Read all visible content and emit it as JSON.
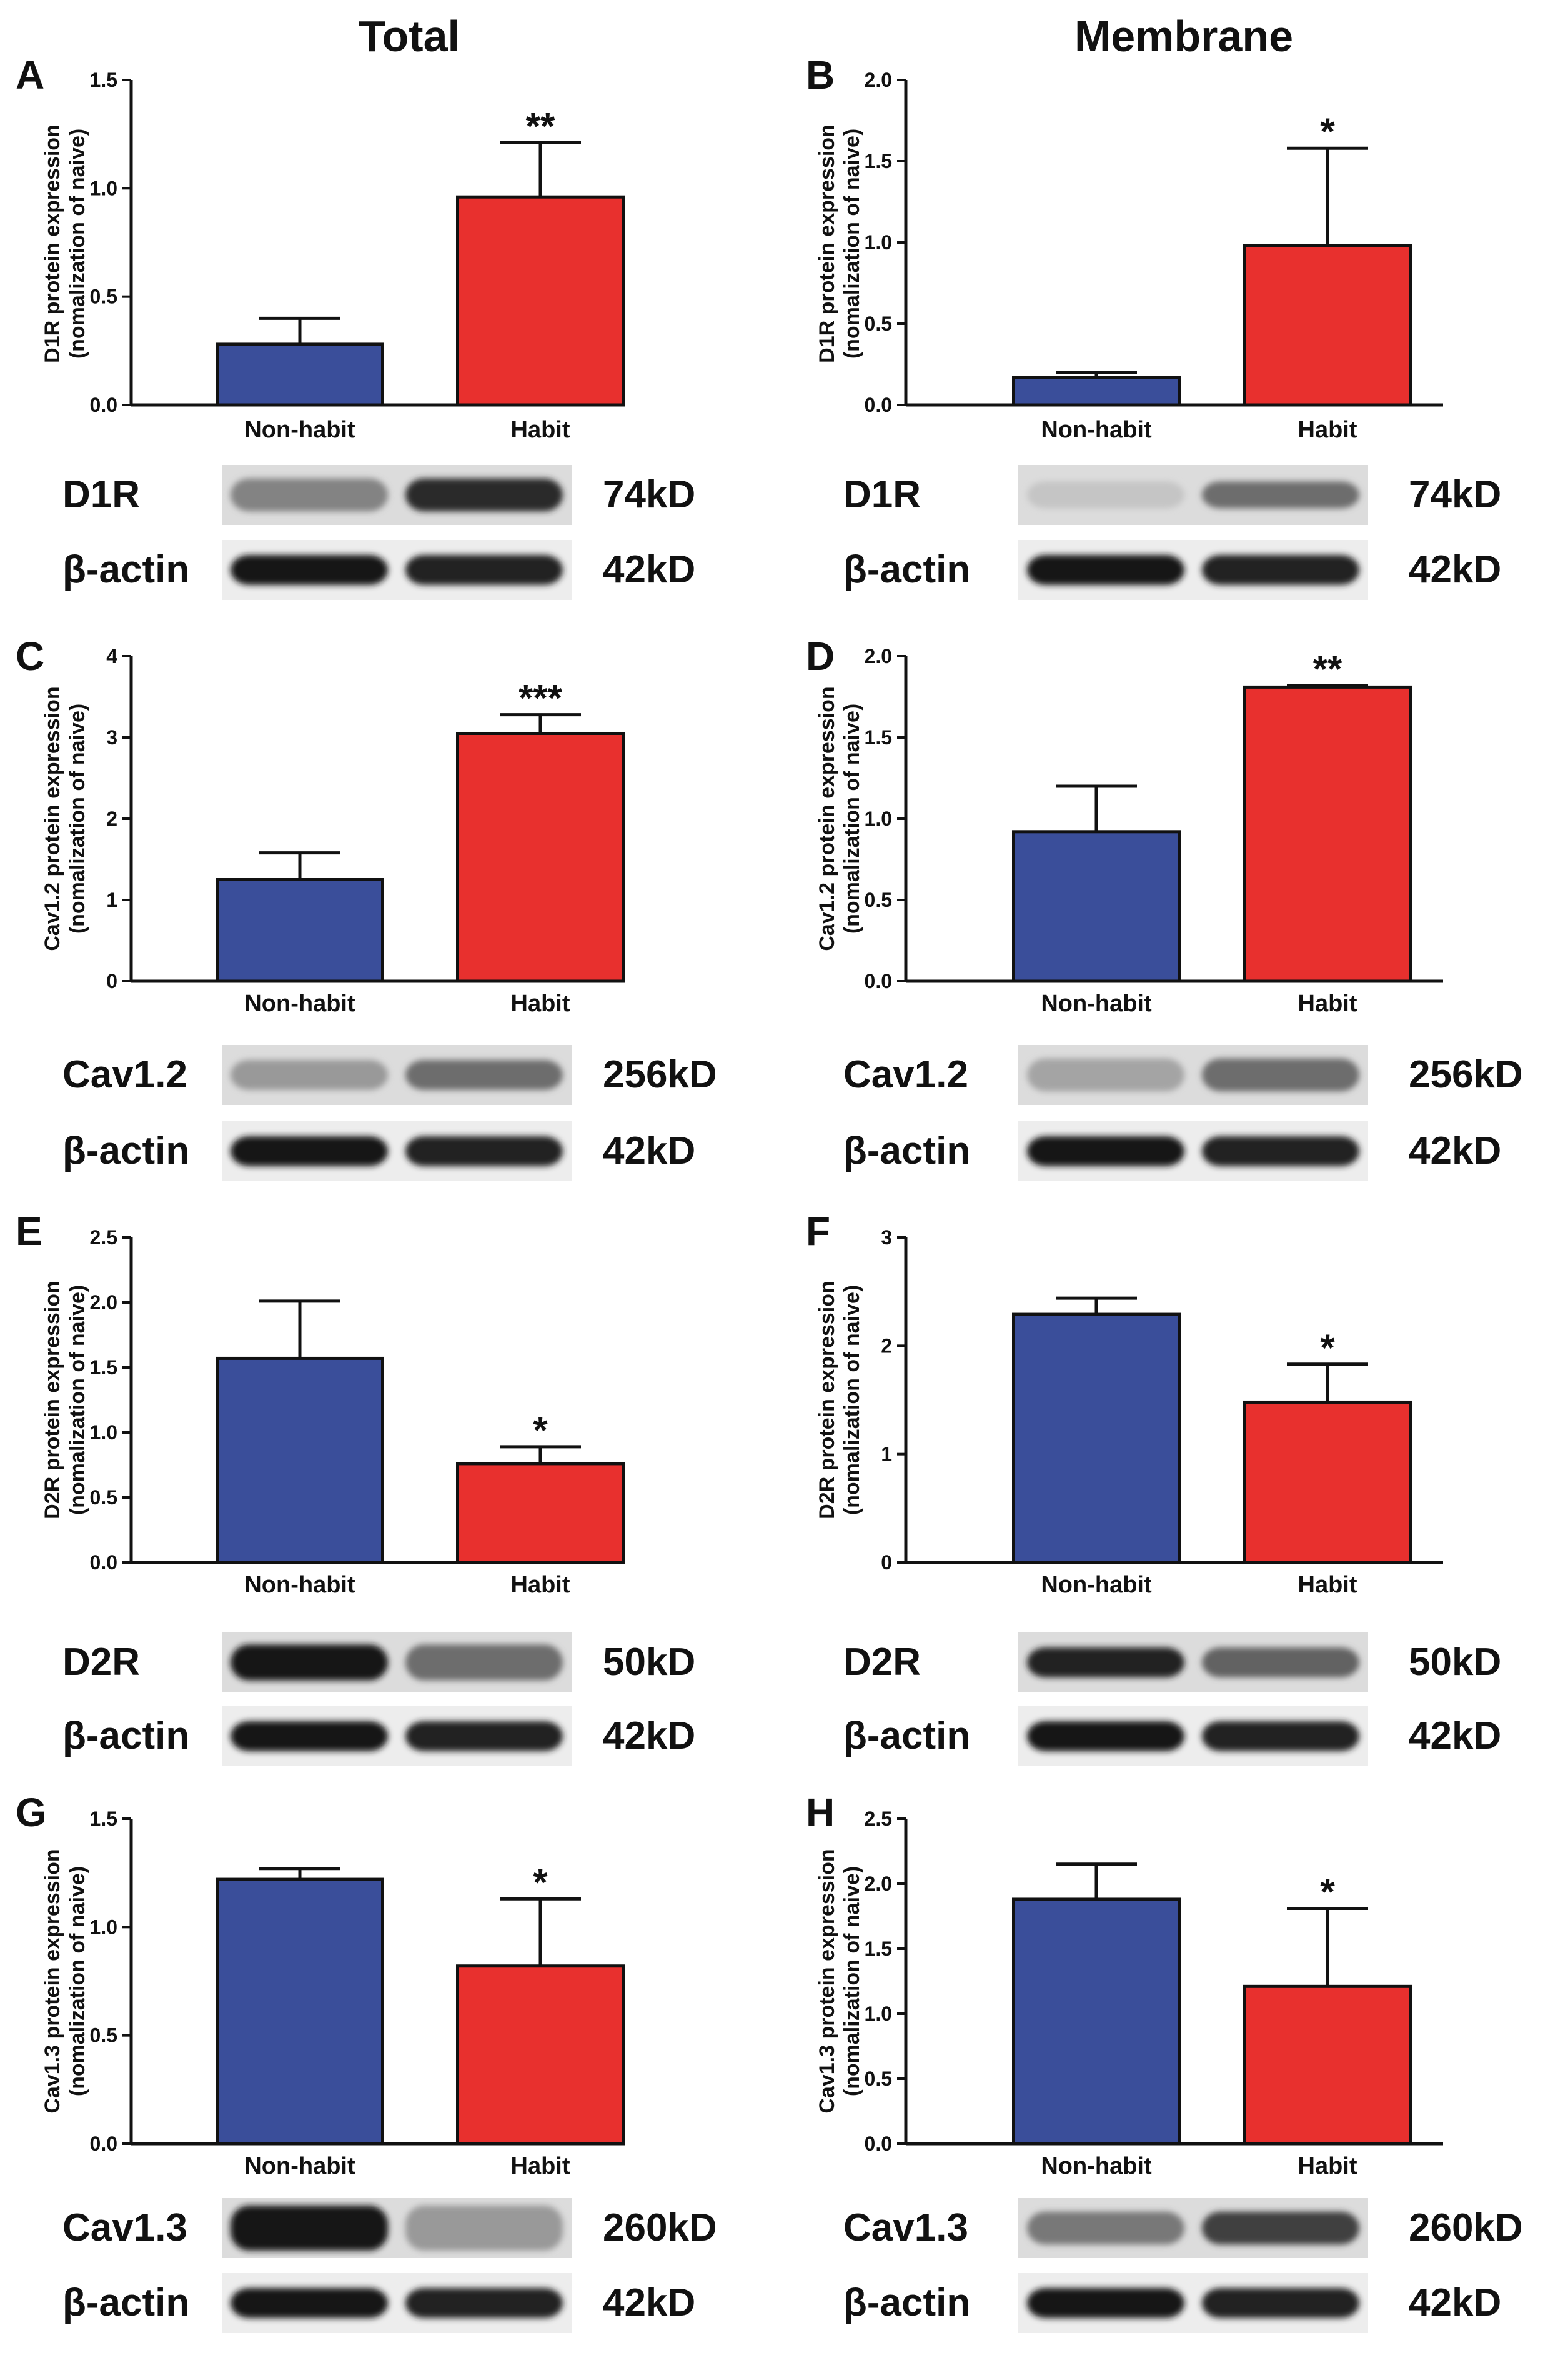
{
  "column_titles": [
    "Total",
    "Membrane"
  ],
  "colors": {
    "non_habit": "#3A4E9A",
    "habit": "#E8302E",
    "axis": "#111111"
  },
  "chart_data": [
    {
      "id": "A",
      "type": "bar",
      "ylabel": [
        "D1R protein expression",
        "(nomalization of naive)"
      ],
      "categories": [
        "Non-habit",
        "Habit"
      ],
      "values": [
        0.28,
        0.96
      ],
      "errors": [
        0.12,
        0.25
      ],
      "significance": [
        "",
        "**"
      ],
      "ylim": [
        0,
        1.5
      ],
      "ticks": [
        "0.0",
        "0.5",
        "1.0",
        "1.5"
      ],
      "blot": {
        "protein": "D1R",
        "protein_kd": "74kD",
        "control": "β-actin",
        "control_kd": "42kD"
      }
    },
    {
      "id": "B",
      "type": "bar",
      "ylabel": [
        "D1R protein expression",
        "(nomalization of naive)"
      ],
      "categories": [
        "Non-habit",
        "Habit"
      ],
      "values": [
        0.17,
        0.98
      ],
      "errors": [
        0.03,
        0.6
      ],
      "significance": [
        "",
        "*"
      ],
      "ylim": [
        0,
        2.0
      ],
      "ticks": [
        "0.0",
        "0.5",
        "1.0",
        "1.5",
        "2.0"
      ],
      "blot": {
        "protein": "D1R",
        "protein_kd": "74kD",
        "control": "β-actin",
        "control_kd": "42kD"
      }
    },
    {
      "id": "C",
      "type": "bar",
      "ylabel": [
        "Cav1.2 protein expression",
        "(nomalization of naive)"
      ],
      "categories": [
        "Non-habit",
        "Habit"
      ],
      "values": [
        1.25,
        3.05
      ],
      "errors": [
        0.33,
        0.23
      ],
      "significance": [
        "",
        "***"
      ],
      "ylim": [
        0,
        4
      ],
      "ticks": [
        "0",
        "1",
        "2",
        "3",
        "4"
      ],
      "blot": {
        "protein": "Cav1.2",
        "protein_kd": "256kD",
        "control": "β-actin",
        "control_kd": "42kD"
      }
    },
    {
      "id": "D",
      "type": "bar",
      "ylabel": [
        "Cav1.2 protein expression",
        "(nomalization of naive)"
      ],
      "categories": [
        "Non-habit",
        "Habit"
      ],
      "values": [
        0.92,
        1.81
      ],
      "errors": [
        0.28,
        0.01
      ],
      "significance": [
        "",
        "**"
      ],
      "ylim": [
        0,
        2.0
      ],
      "ticks": [
        "0.0",
        "0.5",
        "1.0",
        "1.5",
        "2.0"
      ],
      "blot": {
        "protein": "Cav1.2",
        "protein_kd": "256kD",
        "control": "β-actin",
        "control_kd": "42kD"
      }
    },
    {
      "id": "E",
      "type": "bar",
      "ylabel": [
        "D2R protein expression",
        "(nomalization of naive)"
      ],
      "categories": [
        "Non-habit",
        "Habit"
      ],
      "values": [
        1.57,
        0.76
      ],
      "errors": [
        0.44,
        0.13
      ],
      "significance": [
        "",
        "*"
      ],
      "ylim": [
        0,
        2.5
      ],
      "ticks": [
        "0.0",
        "0.5",
        "1.0",
        "1.5",
        "2.0",
        "2.5"
      ],
      "blot": {
        "protein": "D2R",
        "protein_kd": "50kD",
        "control": "β-actin",
        "control_kd": "42kD"
      }
    },
    {
      "id": "F",
      "type": "bar",
      "ylabel": [
        "D2R protein expression",
        "(nomalization of naive)"
      ],
      "categories": [
        "Non-habit",
        "Habit"
      ],
      "values": [
        2.29,
        1.48
      ],
      "errors": [
        0.15,
        0.35
      ],
      "significance": [
        "",
        "*"
      ],
      "ylim": [
        0,
        3
      ],
      "ticks": [
        "0",
        "1",
        "2",
        "3"
      ],
      "blot": {
        "protein": "D2R",
        "protein_kd": "50kD",
        "control": "β-actin",
        "control_kd": "42kD"
      }
    },
    {
      "id": "G",
      "type": "bar",
      "ylabel": [
        "Cav1.3 protein expression",
        "(nomalization of naive)"
      ],
      "categories": [
        "Non-habit",
        "Habit"
      ],
      "values": [
        1.22,
        0.82
      ],
      "errors": [
        0.05,
        0.31
      ],
      "significance": [
        "",
        "*"
      ],
      "ylim": [
        0,
        1.5
      ],
      "ticks": [
        "0.0",
        "0.5",
        "1.0",
        "1.5"
      ],
      "blot": {
        "protein": "Cav1.3",
        "protein_kd": "260kD",
        "control": "β-actin",
        "control_kd": "42kD"
      }
    },
    {
      "id": "H",
      "type": "bar",
      "ylabel": [
        "Cav1.3 protein expression",
        "(nomalization of naive)"
      ],
      "categories": [
        "Non-habit",
        "Habit"
      ],
      "values": [
        1.88,
        1.21
      ],
      "errors": [
        0.27,
        0.6
      ],
      "significance": [
        "",
        "*"
      ],
      "ylim": [
        0,
        2.5
      ],
      "ticks": [
        "0.0",
        "0.5",
        "1.0",
        "1.5",
        "2.0",
        "2.5"
      ],
      "blot": {
        "protein": "Cav1.3",
        "protein_kd": "260kD",
        "control": "β-actin",
        "control_kd": "42kD"
      }
    }
  ]
}
